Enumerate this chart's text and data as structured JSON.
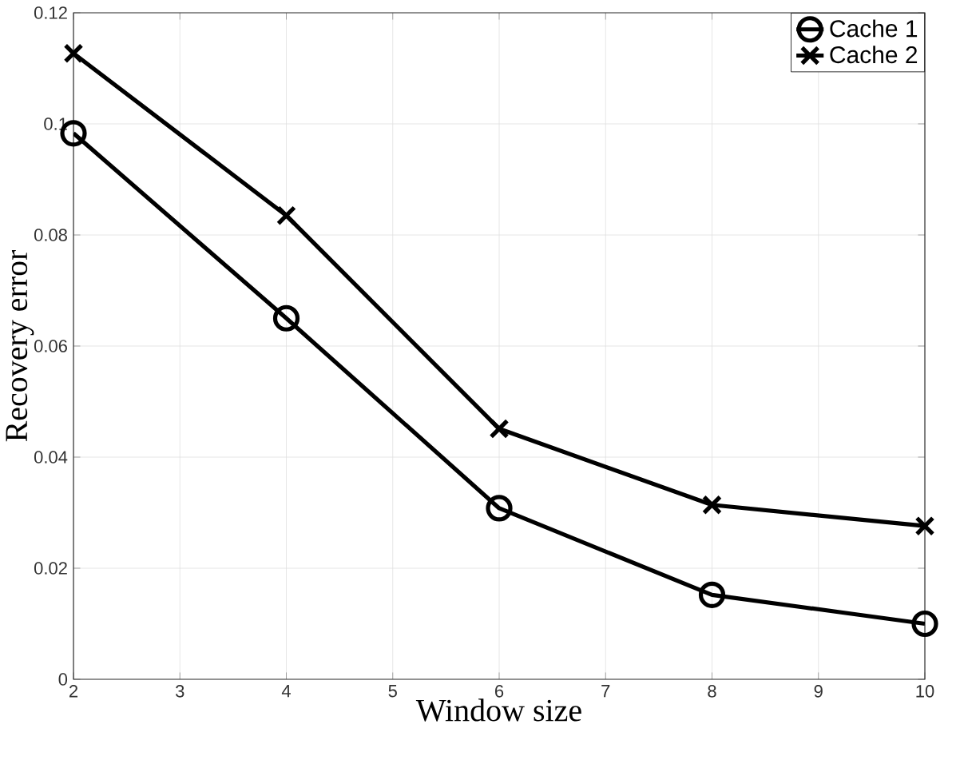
{
  "chart_data": {
    "type": "line",
    "xlabel": "Window size",
    "ylabel": "Recovery error",
    "x": [
      2,
      4,
      6,
      8,
      10
    ],
    "series": [
      {
        "name": "Cache 1",
        "color": "#000000",
        "marker": "circle",
        "values": [
          0.0983,
          0.065,
          0.0308,
          0.0152,
          0.01
        ]
      },
      {
        "name": "Cache 2",
        "color": "#000000",
        "marker": "cross",
        "values": [
          0.1127,
          0.0835,
          0.0451,
          0.0314,
          0.0276
        ]
      }
    ],
    "xlim": [
      2,
      10
    ],
    "xticks": [
      2,
      3,
      4,
      5,
      6,
      7,
      8,
      9,
      10
    ],
    "ylim": [
      0,
      0.12
    ],
    "yticks": [
      0,
      0.02,
      0.04,
      0.06,
      0.08,
      0.1,
      0.12
    ],
    "grid": true,
    "legend": "top right",
    "line_style": "solid"
  }
}
